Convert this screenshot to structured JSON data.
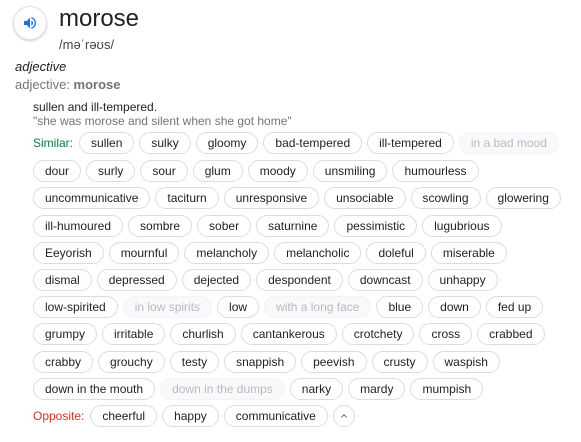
{
  "entry": {
    "word": "morose",
    "phonetic": "/məˈrəʊs/",
    "speaker_icon": "speaker-icon"
  },
  "part_of_speech": "adjective",
  "pos_line": {
    "prefix": "adjective: ",
    "word": "morose"
  },
  "definition": "sullen and ill-tempered.",
  "example": "\"she was morose and silent when she got home\"",
  "similar": {
    "label": "Similar:",
    "rows": [
      [
        {
          "text": "sullen",
          "muted": false
        },
        {
          "text": "sulky",
          "muted": false
        },
        {
          "text": "gloomy",
          "muted": false
        },
        {
          "text": "bad-tempered",
          "muted": false
        },
        {
          "text": "ill-tempered",
          "muted": false
        },
        {
          "text": "in a bad mood",
          "muted": true
        }
      ],
      [
        {
          "text": "dour",
          "muted": false
        },
        {
          "text": "surly",
          "muted": false
        },
        {
          "text": "sour",
          "muted": false
        },
        {
          "text": "glum",
          "muted": false
        },
        {
          "text": "moody",
          "muted": false
        },
        {
          "text": "unsmiling",
          "muted": false
        },
        {
          "text": "humourless",
          "muted": false
        }
      ],
      [
        {
          "text": "uncommunicative",
          "muted": false
        },
        {
          "text": "taciturn",
          "muted": false
        },
        {
          "text": "unresponsive",
          "muted": false
        },
        {
          "text": "unsociable",
          "muted": false
        },
        {
          "text": "scowling",
          "muted": false
        },
        {
          "text": "glowering",
          "muted": false
        }
      ],
      [
        {
          "text": "ill-humoured",
          "muted": false
        },
        {
          "text": "sombre",
          "muted": false
        },
        {
          "text": "sober",
          "muted": false
        },
        {
          "text": "saturnine",
          "muted": false
        },
        {
          "text": "pessimistic",
          "muted": false
        },
        {
          "text": "lugubrious",
          "muted": false
        }
      ],
      [
        {
          "text": "Eeyorish",
          "muted": false
        },
        {
          "text": "mournful",
          "muted": false
        },
        {
          "text": "melancholy",
          "muted": false
        },
        {
          "text": "melancholic",
          "muted": false
        },
        {
          "text": "doleful",
          "muted": false
        },
        {
          "text": "miserable",
          "muted": false
        }
      ],
      [
        {
          "text": "dismal",
          "muted": false
        },
        {
          "text": "depressed",
          "muted": false
        },
        {
          "text": "dejected",
          "muted": false
        },
        {
          "text": "despondent",
          "muted": false
        },
        {
          "text": "downcast",
          "muted": false
        },
        {
          "text": "unhappy",
          "muted": false
        }
      ],
      [
        {
          "text": "low-spirited",
          "muted": false
        },
        {
          "text": "in low spirits",
          "muted": true
        },
        {
          "text": "low",
          "muted": false
        },
        {
          "text": "with a long face",
          "muted": true
        },
        {
          "text": "blue",
          "muted": false
        },
        {
          "text": "down",
          "muted": false
        },
        {
          "text": "fed up",
          "muted": false
        }
      ],
      [
        {
          "text": "grumpy",
          "muted": false
        },
        {
          "text": "irritable",
          "muted": false
        },
        {
          "text": "churlish",
          "muted": false
        },
        {
          "text": "cantankerous",
          "muted": false
        },
        {
          "text": "crotchety",
          "muted": false
        },
        {
          "text": "cross",
          "muted": false
        },
        {
          "text": "crabbed",
          "muted": false
        }
      ],
      [
        {
          "text": "crabby",
          "muted": false
        },
        {
          "text": "grouchy",
          "muted": false
        },
        {
          "text": "testy",
          "muted": false
        },
        {
          "text": "snappish",
          "muted": false
        },
        {
          "text": "peevish",
          "muted": false
        },
        {
          "text": "crusty",
          "muted": false
        },
        {
          "text": "waspish",
          "muted": false
        }
      ],
      [
        {
          "text": "down in the mouth",
          "muted": false
        },
        {
          "text": "down in the dumps",
          "muted": true
        },
        {
          "text": "narky",
          "muted": false
        },
        {
          "text": "mardy",
          "muted": false
        },
        {
          "text": "mumpish",
          "muted": false
        }
      ]
    ]
  },
  "opposite": {
    "label": "Opposite:",
    "chips": [
      {
        "text": "cheerful",
        "muted": false
      },
      {
        "text": "happy",
        "muted": false
      },
      {
        "text": "communicative",
        "muted": false
      }
    ],
    "collapse_icon": "chevron-up-icon"
  },
  "colors": {
    "similar_label": "#0a7d3e",
    "opposite_label": "#d93025",
    "speaker": "#1a73e8",
    "muted_chip_text": "#b7bbbf"
  }
}
